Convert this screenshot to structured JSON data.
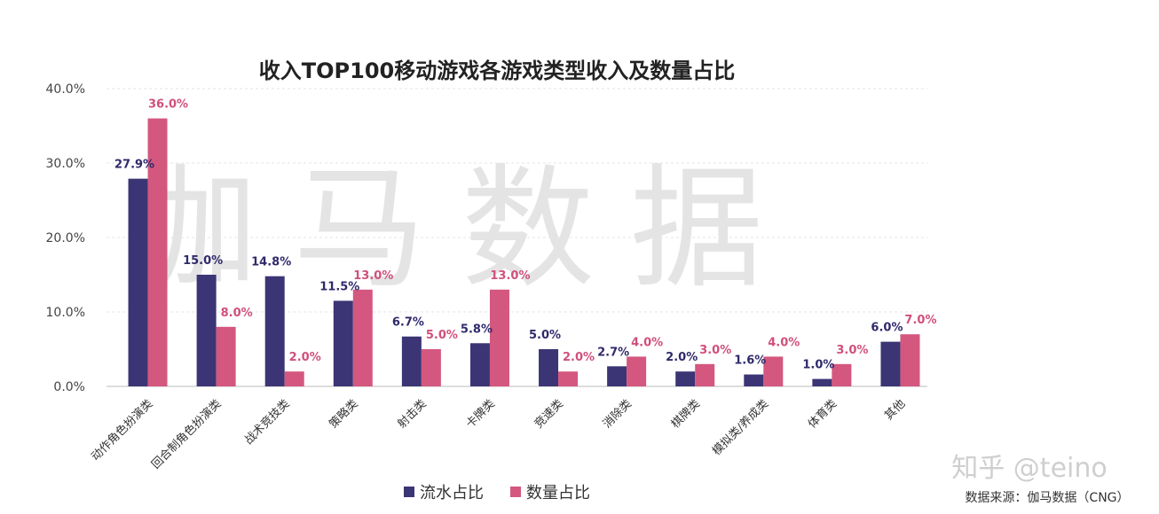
{
  "chart_data": {
    "type": "bar",
    "title": "收入TOP100移动游戏各游戏类型收入及数量占比",
    "categories": [
      "动作角色扮演类",
      "回合制角色扮演类",
      "战术竞技类",
      "策略类",
      "射击类",
      "卡牌类",
      "竞速类",
      "消除类",
      "棋牌类",
      "模拟类/养成类",
      "体育类",
      "其他"
    ],
    "series": [
      {
        "name": "流水占比",
        "color": "#3b3575",
        "values": [
          27.9,
          15.0,
          14.8,
          11.5,
          6.7,
          5.8,
          5.0,
          2.7,
          2.0,
          1.6,
          1.0,
          6.0
        ],
        "labels": [
          "27.9%",
          "15.0%",
          "14.8%",
          "11.5%",
          "6.7%",
          "5.8%",
          "5.0%",
          "2.7%",
          "2.0%",
          "1.6%",
          "1.0%",
          "6.0%"
        ]
      },
      {
        "name": "数量占比",
        "color": "#d4577f",
        "values": [
          36.0,
          8.0,
          2.0,
          13.0,
          5.0,
          13.0,
          2.0,
          4.0,
          3.0,
          4.0,
          3.0,
          7.0
        ],
        "labels": [
          "36.0%",
          "8.0%",
          "2.0%",
          "13.0%",
          "5.0%",
          "13.0%",
          "2.0%",
          "4.0%",
          "3.0%",
          "4.0%",
          "3.0%",
          "7.0%"
        ]
      }
    ],
    "yticks": [
      "40.0%",
      "30.0%",
      "20.0%",
      "10.0%",
      "0.0%"
    ],
    "ylim": [
      0,
      40
    ],
    "grid": true,
    "legend_position": "bottom-center"
  },
  "watermark": "伽马数据",
  "source": "数据来源：伽马数据（CNG）",
  "zhihu": "知乎 @teino"
}
